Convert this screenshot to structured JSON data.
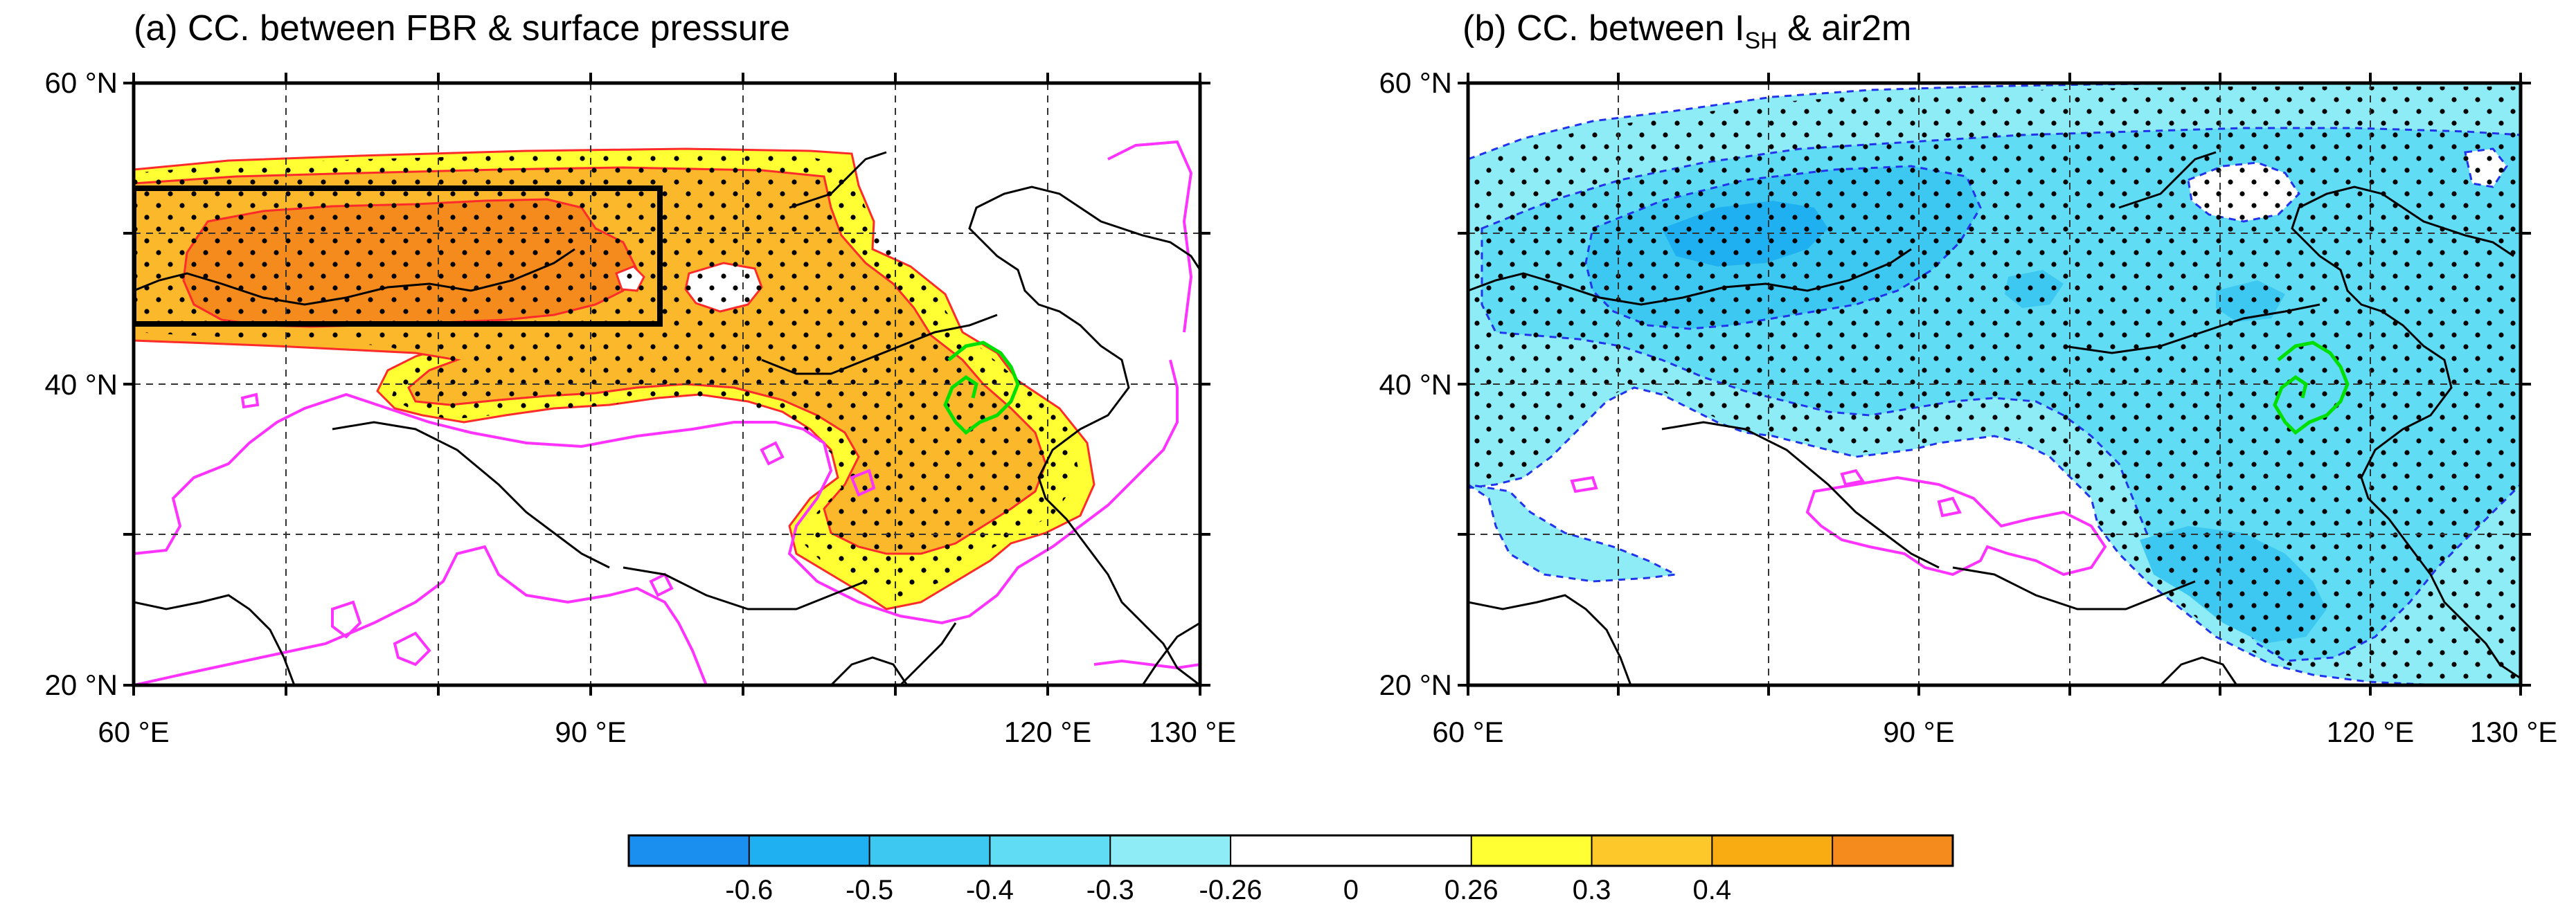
{
  "panel_a": {
    "title": "(a) CC. between FBR & surface pressure",
    "lat_labels": [
      "60 °N",
      "40 °N",
      "20 °N"
    ],
    "lon_labels": [
      "60 °E",
      "90 °E",
      "120 °E",
      "130 °E"
    ]
  },
  "panel_b": {
    "title_prefix": "(b) CC. between I",
    "title_sub": "SH",
    "title_suffix": "  & air2m",
    "lat_labels": [
      "60 °N",
      "40 °N",
      "20 °N"
    ],
    "lon_labels": [
      "60 °E",
      "90 °E",
      "120 °E",
      "130 °E"
    ]
  },
  "colorbar": {
    "labels": [
      "-0.6",
      "-0.5",
      "-0.4",
      "-0.3",
      "-0.26",
      "0",
      "0.26",
      "0.3",
      "0.4"
    ],
    "colors": [
      "#1a8ff0",
      "#1fb0f2",
      "#3cc8f0",
      "#60dcf4",
      "#8eecf6",
      "#ffffff",
      "#ffffff",
      "#ffff33",
      "#fdc82a",
      "#f9ab12",
      "#f48b1c"
    ]
  },
  "colors": {
    "frame": "#000000",
    "coast": "#000000",
    "pos_contour": "#ff2a2a",
    "neg_contour_a": "#ff33ff",
    "neg_contour_b": "#2233ee",
    "region_outline": "#00e000",
    "box": "#000000"
  }
}
